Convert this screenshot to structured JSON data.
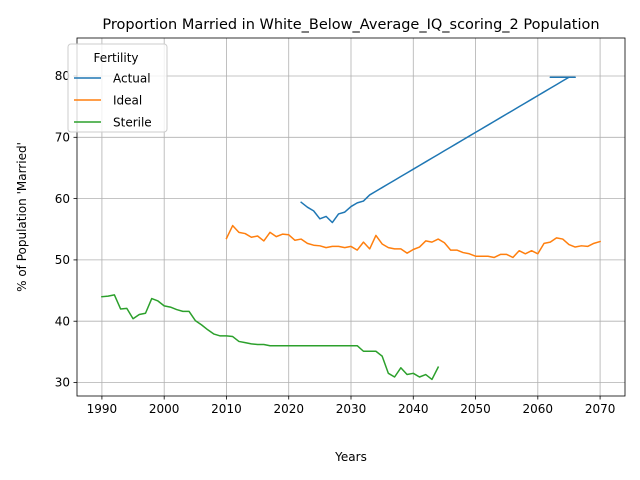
{
  "chart_data": {
    "type": "line",
    "title": "Proportion Married in White_Below_Average_IQ_scoring_2 Population",
    "xlabel": "Years",
    "ylabel": "% of Population 'Married'",
    "xlim": [
      1986.0,
      2074.0
    ],
    "ylim": [
      27.8,
      86.2
    ],
    "xticks": [
      1990,
      2000,
      2010,
      2020,
      2030,
      2040,
      2050,
      2060,
      2070
    ],
    "yticks": [
      30,
      40,
      50,
      60,
      70,
      80
    ],
    "grid": true,
    "legend": {
      "title": "Fertility",
      "placement": "top-left"
    },
    "series": [
      {
        "name": "Actual",
        "color": "#1f77b4",
        "points": [
          [
            2022,
            59.4
          ],
          [
            2023,
            58.6
          ],
          [
            2024,
            58.0
          ],
          [
            2025,
            56.7
          ],
          [
            2026,
            57.1
          ],
          [
            2027,
            56.1
          ],
          [
            2028,
            57.5
          ],
          [
            2029,
            57.8
          ],
          [
            2030,
            58.7
          ],
          [
            2031,
            59.3
          ],
          [
            2032,
            59.6
          ],
          [
            2033,
            60.6
          ],
          [
            2034,
            61.2
          ],
          [
            2035,
            61.8
          ],
          [
            2036,
            62.4
          ],
          [
            2037,
            63.0
          ],
          [
            2038,
            63.6
          ],
          [
            2039,
            64.2
          ],
          [
            2040,
            64.8
          ],
          [
            2041,
            65.4
          ],
          [
            2042,
            66.0
          ],
          [
            2043,
            66.6
          ],
          [
            2044,
            67.2
          ],
          [
            2045,
            67.8
          ],
          [
            2046,
            68.4
          ],
          [
            2047,
            69.0
          ],
          [
            2048,
            69.6
          ],
          [
            2049,
            70.2
          ],
          [
            2050,
            70.8
          ],
          [
            2051,
            71.4
          ],
          [
            2052,
            72.0
          ],
          [
            2053,
            72.6
          ],
          [
            2054,
            73.2
          ],
          [
            2055,
            73.8
          ],
          [
            2056,
            74.4
          ],
          [
            2057,
            75.0
          ],
          [
            2058,
            75.6
          ],
          [
            2059,
            76.2
          ],
          [
            2060,
            76.8
          ],
          [
            2061,
            77.4
          ],
          [
            2062,
            78.0
          ],
          [
            2063,
            78.6
          ],
          [
            2064,
            79.2
          ],
          [
            2065,
            79.8
          ],
          [
            2066,
            79.8
          ],
          [
            2062,
            79.8
          ],
          [
            2063,
            79.8
          ]
        ]
      },
      {
        "name": "Ideal",
        "color": "#ff7f0e",
        "points": [
          [
            2010,
            53.5
          ],
          [
            2011,
            55.6
          ],
          [
            2012,
            54.5
          ],
          [
            2013,
            54.3
          ],
          [
            2014,
            53.7
          ],
          [
            2015,
            53.9
          ],
          [
            2016,
            53.1
          ],
          [
            2017,
            54.5
          ],
          [
            2018,
            53.8
          ],
          [
            2019,
            54.2
          ],
          [
            2020,
            54.1
          ],
          [
            2021,
            53.2
          ],
          [
            2022,
            53.4
          ],
          [
            2023,
            52.7
          ],
          [
            2024,
            52.4
          ],
          [
            2025,
            52.3
          ],
          [
            2026,
            52.0
          ],
          [
            2027,
            52.2
          ],
          [
            2028,
            52.2
          ],
          [
            2029,
            52.0
          ],
          [
            2030,
            52.2
          ],
          [
            2031,
            51.6
          ],
          [
            2032,
            52.9
          ],
          [
            2033,
            51.8
          ],
          [
            2034,
            54.0
          ],
          [
            2035,
            52.6
          ],
          [
            2036,
            52.0
          ],
          [
            2037,
            51.8
          ],
          [
            2038,
            51.8
          ],
          [
            2039,
            51.1
          ],
          [
            2040,
            51.7
          ],
          [
            2041,
            52.1
          ],
          [
            2042,
            53.1
          ],
          [
            2043,
            52.9
          ],
          [
            2044,
            53.4
          ],
          [
            2045,
            52.8
          ],
          [
            2046,
            51.6
          ],
          [
            2047,
            51.6
          ],
          [
            2048,
            51.2
          ],
          [
            2049,
            51.0
          ],
          [
            2050,
            50.6
          ],
          [
            2051,
            50.6
          ],
          [
            2052,
            50.6
          ],
          [
            2053,
            50.4
          ],
          [
            2054,
            50.9
          ],
          [
            2055,
            50.9
          ],
          [
            2056,
            50.4
          ],
          [
            2057,
            51.5
          ],
          [
            2058,
            51.0
          ],
          [
            2059,
            51.5
          ],
          [
            2060,
            51.0
          ],
          [
            2061,
            52.7
          ],
          [
            2062,
            52.9
          ],
          [
            2063,
            53.6
          ],
          [
            2064,
            53.4
          ],
          [
            2065,
            52.5
          ],
          [
            2066,
            52.1
          ],
          [
            2067,
            52.3
          ],
          [
            2068,
            52.2
          ],
          [
            2069,
            52.7
          ],
          [
            2070,
            53.0
          ]
        ]
      },
      {
        "name": "Sterile",
        "color": "#2ca02c",
        "points": [
          [
            1990,
            44.0
          ],
          [
            1991,
            44.1
          ],
          [
            1992,
            44.3
          ],
          [
            1993,
            42.0
          ],
          [
            1994,
            42.1
          ],
          [
            1995,
            40.4
          ],
          [
            1996,
            41.1
          ],
          [
            1997,
            41.3
          ],
          [
            1998,
            43.7
          ],
          [
            1999,
            43.3
          ],
          [
            2000,
            42.5
          ],
          [
            2001,
            42.3
          ],
          [
            2002,
            41.9
          ],
          [
            2003,
            41.6
          ],
          [
            2004,
            41.6
          ],
          [
            2005,
            40.1
          ],
          [
            2006,
            39.4
          ],
          [
            2007,
            38.6
          ],
          [
            2008,
            37.9
          ],
          [
            2009,
            37.6
          ],
          [
            2010,
            37.6
          ],
          [
            2011,
            37.5
          ],
          [
            2012,
            36.7
          ],
          [
            2013,
            36.5
          ],
          [
            2014,
            36.3
          ],
          [
            2015,
            36.2
          ],
          [
            2016,
            36.2
          ],
          [
            2017,
            36.0
          ],
          [
            2018,
            36.0
          ],
          [
            2019,
            36.0
          ],
          [
            2020,
            36.0
          ],
          [
            2021,
            36.0
          ],
          [
            2022,
            36.0
          ],
          [
            2023,
            36.0
          ],
          [
            2024,
            36.0
          ],
          [
            2025,
            36.0
          ],
          [
            2026,
            36.0
          ],
          [
            2027,
            36.0
          ],
          [
            2028,
            36.0
          ],
          [
            2029,
            36.0
          ],
          [
            2030,
            36.0
          ],
          [
            2031,
            36.0
          ],
          [
            2032,
            35.1
          ],
          [
            2033,
            35.1
          ],
          [
            2034,
            35.1
          ],
          [
            2035,
            34.3
          ],
          [
            2036,
            31.5
          ],
          [
            2037,
            30.9
          ],
          [
            2038,
            32.4
          ],
          [
            2039,
            31.3
          ],
          [
            2040,
            31.5
          ],
          [
            2041,
            30.9
          ],
          [
            2042,
            31.3
          ],
          [
            2043,
            30.5
          ],
          [
            2044,
            32.5
          ]
        ]
      }
    ]
  }
}
